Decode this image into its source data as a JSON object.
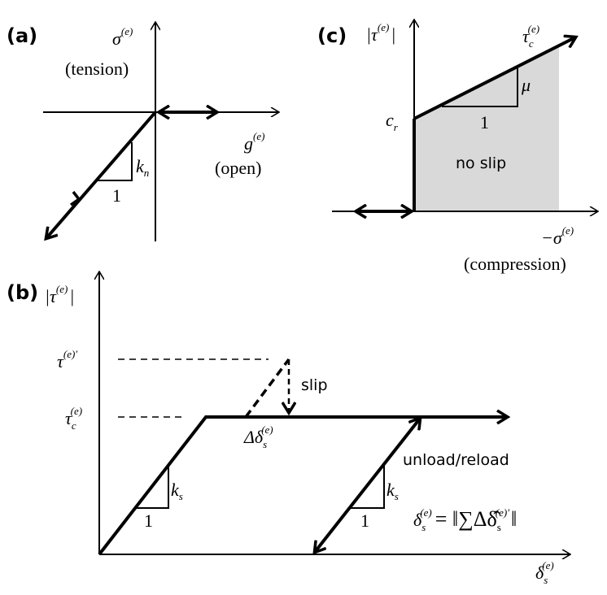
{
  "panels": {
    "a": {
      "label": "(a)",
      "y_axis": "σ",
      "y_axis_sup": "(e)",
      "y_axis_note": "(tension)",
      "x_axis": "g",
      "x_axis_sup": "(e)",
      "x_axis_note": "(open)",
      "slope_label": "k",
      "slope_sub": "n",
      "run_label": "1"
    },
    "b": {
      "label": "(b)",
      "y_axis": "|τ",
      "y_axis_sup": "(e)",
      "y_axis_close": "|",
      "tau_prime": "τ",
      "tau_prime_sup": "(e)′",
      "tau_c": "τ",
      "tau_c_sub": "c",
      "tau_c_sup": "(e)",
      "slip_label": "slip",
      "delta_label": "Δδ",
      "delta_sub": "s",
      "delta_sup": "(e)",
      "unload_label": "unload/reload",
      "slope_label": "k",
      "slope_sub": "s",
      "run_label": "1",
      "formula_lhs": "δ",
      "formula_lhs_sub": "s",
      "formula_lhs_sup": "(e)",
      "formula_rhs": "= ‖∑Δδ̂",
      "formula_rhs_sub": "s",
      "formula_rhs_sup": "(e)′",
      "formula_close": "‖",
      "x_axis": "δ",
      "x_axis_sub": "s",
      "x_axis_sup": "(e)"
    },
    "c": {
      "label": "(c)",
      "y_axis": "|τ",
      "y_axis_sup": "(e)",
      "y_axis_close": "|",
      "tau_c": "τ",
      "tau_c_sub": "c",
      "tau_c_sup": "(e)",
      "cohesion": "c",
      "cohesion_sub": "r",
      "slope_label": "μ",
      "run_label": "1",
      "region_label": "no slip",
      "x_axis": "−σ",
      "x_axis_sup": "(e)",
      "x_axis_note": "(compression)",
      "region_color": "#d9d9d9"
    }
  }
}
